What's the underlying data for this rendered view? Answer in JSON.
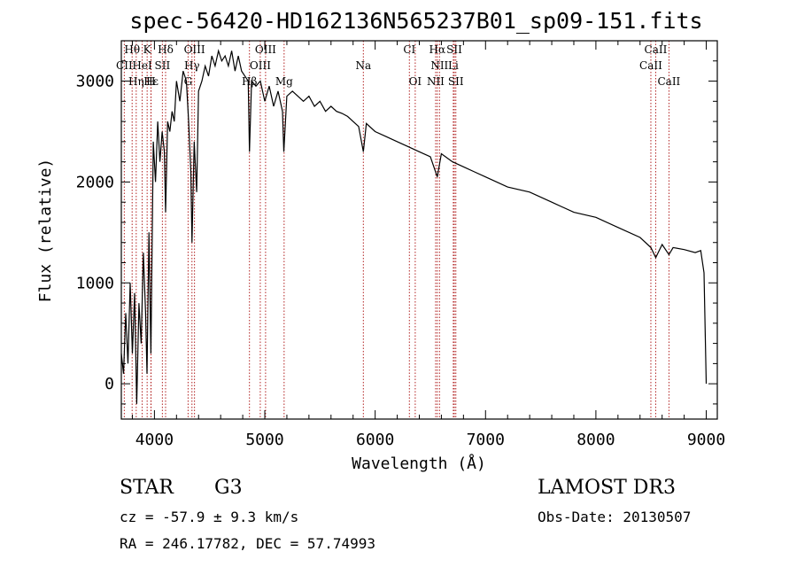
{
  "chart_data": {
    "type": "line",
    "title": "spec-56420-HD162136N565237B01_sp09-151.fits",
    "xlabel": "Wavelength (Å)",
    "ylabel": "Flux (relative)",
    "xlim": [
      3700,
      9100
    ],
    "ylim": [
      -350,
      3400
    ],
    "xticks": [
      4000,
      5000,
      6000,
      7000,
      8000,
      9000
    ],
    "yticks": [
      0,
      1000,
      2000,
      3000
    ],
    "series": [
      {
        "name": "flux",
        "x": [
          3700,
          3720,
          3740,
          3760,
          3780,
          3800,
          3820,
          3840,
          3860,
          3880,
          3900,
          3920,
          3933,
          3950,
          3968,
          3990,
          4010,
          4030,
          4050,
          4070,
          4090,
          4101,
          4120,
          4140,
          4160,
          4180,
          4200,
          4230,
          4260,
          4290,
          4310,
          4330,
          4340,
          4360,
          4383,
          4400,
          4430,
          4460,
          4490,
          4520,
          4550,
          4580,
          4610,
          4640,
          4670,
          4700,
          4730,
          4760,
          4790,
          4820,
          4850,
          4861,
          4880,
          4920,
          4960,
          5000,
          5040,
          5080,
          5120,
          5160,
          5172,
          5200,
          5250,
          5300,
          5350,
          5400,
          5450,
          5500,
          5550,
          5600,
          5650,
          5700,
          5750,
          5800,
          5850,
          5893,
          5920,
          6000,
          6100,
          6200,
          6300,
          6400,
          6500,
          6563,
          6600,
          6700,
          6800,
          6900,
          7000,
          7200,
          7400,
          7600,
          7800,
          8000,
          8200,
          8400,
          8498,
          8542,
          8600,
          8662,
          8700,
          8800,
          8900,
          8950,
          8980,
          9000
        ],
        "values": [
          300,
          100,
          700,
          200,
          1000,
          300,
          900,
          -200,
          800,
          400,
          1300,
          700,
          100,
          1500,
          300,
          2400,
          2000,
          2600,
          2200,
          2500,
          2300,
          1700,
          2600,
          2500,
          2700,
          2600,
          3000,
          2800,
          3100,
          3000,
          2600,
          2100,
          1400,
          2400,
          1900,
          2900,
          3000,
          3150,
          3050,
          3250,
          3150,
          3300,
          3200,
          3250,
          3150,
          3300,
          3100,
          3250,
          3100,
          3050,
          3000,
          2300,
          3000,
          2950,
          3000,
          2800,
          2950,
          2750,
          2900,
          2700,
          2300,
          2850,
          2900,
          2850,
          2800,
          2850,
          2750,
          2800,
          2700,
          2750,
          2700,
          2680,
          2650,
          2600,
          2550,
          2300,
          2580,
          2500,
          2450,
          2400,
          2350,
          2300,
          2250,
          2050,
          2280,
          2200,
          2150,
          2100,
          2050,
          1950,
          1900,
          1800,
          1700,
          1650,
          1550,
          1450,
          1350,
          1250,
          1380,
          1280,
          1350,
          1330,
          1300,
          1320,
          1100,
          0
        ]
      }
    ],
    "line_markers": [
      {
        "name": "Hθ",
        "wavelength": 3798,
        "row": 0
      },
      {
        "name": "K",
        "wavelength": 3934,
        "row": 0
      },
      {
        "name": "Hδ",
        "wavelength": 4101,
        "row": 0
      },
      {
        "name": "OIII",
        "wavelength": 4363,
        "row": 0
      },
      {
        "name": "OIII",
        "wavelength": 5007,
        "row": 0
      },
      {
        "name": "CI",
        "wavelength": 6310,
        "row": 0
      },
      {
        "name": "Hα",
        "wavelength": 6563,
        "row": 0
      },
      {
        "name": "SII",
        "wavelength": 6717,
        "row": 0
      },
      {
        "name": "CaII",
        "wavelength": 8542,
        "row": 0
      },
      {
        "name": "CII",
        "wavelength": 3727,
        "row": 1
      },
      {
        "name": "HeI",
        "wavelength": 3889,
        "row": 1
      },
      {
        "name": "SII",
        "wavelength": 4072,
        "row": 1
      },
      {
        "name": "Hγ",
        "wavelength": 4340,
        "row": 1
      },
      {
        "name": "OIII",
        "wavelength": 4959,
        "row": 1
      },
      {
        "name": "Na",
        "wavelength": 5893,
        "row": 1
      },
      {
        "name": "NII",
        "wavelength": 6583,
        "row": 1
      },
      {
        "name": "Li",
        "wavelength": 6708,
        "row": 1
      },
      {
        "name": "CaII",
        "wavelength": 8498,
        "row": 1
      },
      {
        "name": "Hε",
        "wavelength": 3970,
        "row": 2
      },
      {
        "name": "Hη",
        "wavelength": 3835,
        "row": 2
      },
      {
        "name": "H",
        "wavelength": 3968,
        "row": 2
      },
      {
        "name": "G",
        "wavelength": 4305,
        "row": 2
      },
      {
        "name": "Hβ",
        "wavelength": 4861,
        "row": 2
      },
      {
        "name": "Mg",
        "wavelength": 5175,
        "row": 2
      },
      {
        "name": "OI",
        "wavelength": 6363,
        "row": 2
      },
      {
        "name": "NII",
        "wavelength": 6548,
        "row": 2
      },
      {
        "name": "SII",
        "wavelength": 6731,
        "row": 2
      },
      {
        "name": "CaII",
        "wavelength": 8662,
        "row": 2
      }
    ],
    "marker_color": "#b22222"
  },
  "info": {
    "object_class": "STAR",
    "subclass": "G3",
    "survey": "LAMOST DR3",
    "redshift": "cz = -57.9 ± 9.3 km/s",
    "obs_date": "Obs-Date: 20130507",
    "coords": "RA = 246.17782, DEC =  57.74993"
  }
}
